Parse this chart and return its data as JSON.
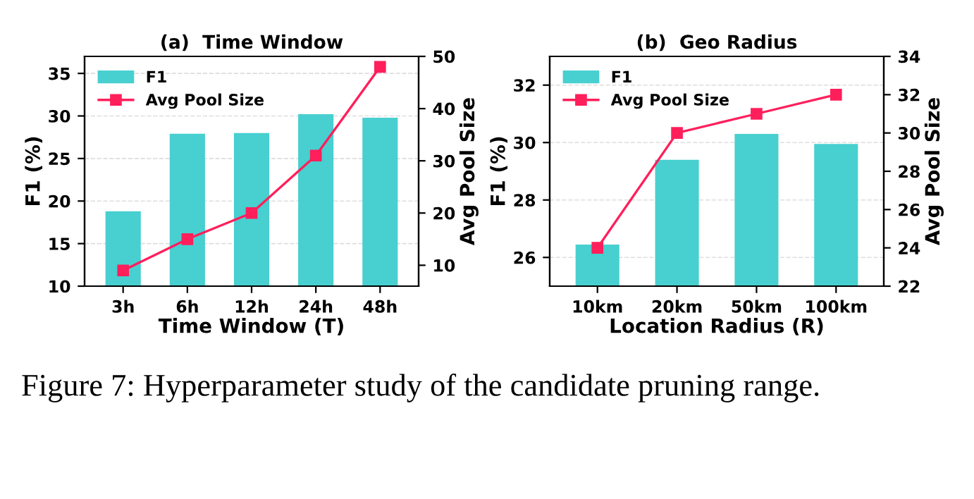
{
  "chart_data": [
    {
      "type": "bar",
      "title": "(a)  Time Window",
      "xlabel": "Time Window (T)",
      "ylabel": "F1 (%)",
      "y2label": "Avg Pool Size",
      "categories": [
        "3h",
        "6h",
        "12h",
        "24h",
        "48h"
      ],
      "series": [
        {
          "name": "F1",
          "color": "#48cfd0",
          "values": [
            18.8,
            27.9,
            28.0,
            30.2,
            29.8
          ]
        },
        {
          "name": "Avg Pool Size",
          "type": "line",
          "axis": "y2",
          "color": "#ff1f5b",
          "marker": "square",
          "values": [
            9,
            15,
            20,
            31,
            48
          ]
        }
      ],
      "ylim": [
        10,
        37
      ],
      "yticks": [
        10,
        15,
        20,
        25,
        30,
        35
      ],
      "y2lim": [
        6,
        50
      ],
      "y2ticks": [
        10,
        20,
        30,
        40,
        50
      ],
      "grid": "y",
      "legend": "top left"
    },
    {
      "type": "bar",
      "title": "(b)  Geo Radius",
      "xlabel": "Location Radius (R)",
      "ylabel": "F1 (%)",
      "y2label": "Avg Pool Size",
      "categories": [
        "10km",
        "20km",
        "50km",
        "100km"
      ],
      "series": [
        {
          "name": "F1",
          "color": "#48cfd0",
          "values": [
            26.45,
            29.4,
            30.3,
            29.95
          ]
        },
        {
          "name": "Avg Pool Size",
          "type": "line",
          "axis": "y2",
          "color": "#ff1f5b",
          "marker": "square",
          "values": [
            24,
            30,
            31,
            32
          ]
        }
      ],
      "ylim": [
        25,
        33
      ],
      "yticks": [
        26,
        28,
        30,
        32
      ],
      "y2lim": [
        22,
        34
      ],
      "y2ticks": [
        22,
        24,
        26,
        28,
        30,
        32,
        34
      ],
      "grid": "y",
      "legend": "top left",
      "annotations": [
        "Figure 7: Hyperparameter study of the candidate pruning range."
      ]
    }
  ]
}
